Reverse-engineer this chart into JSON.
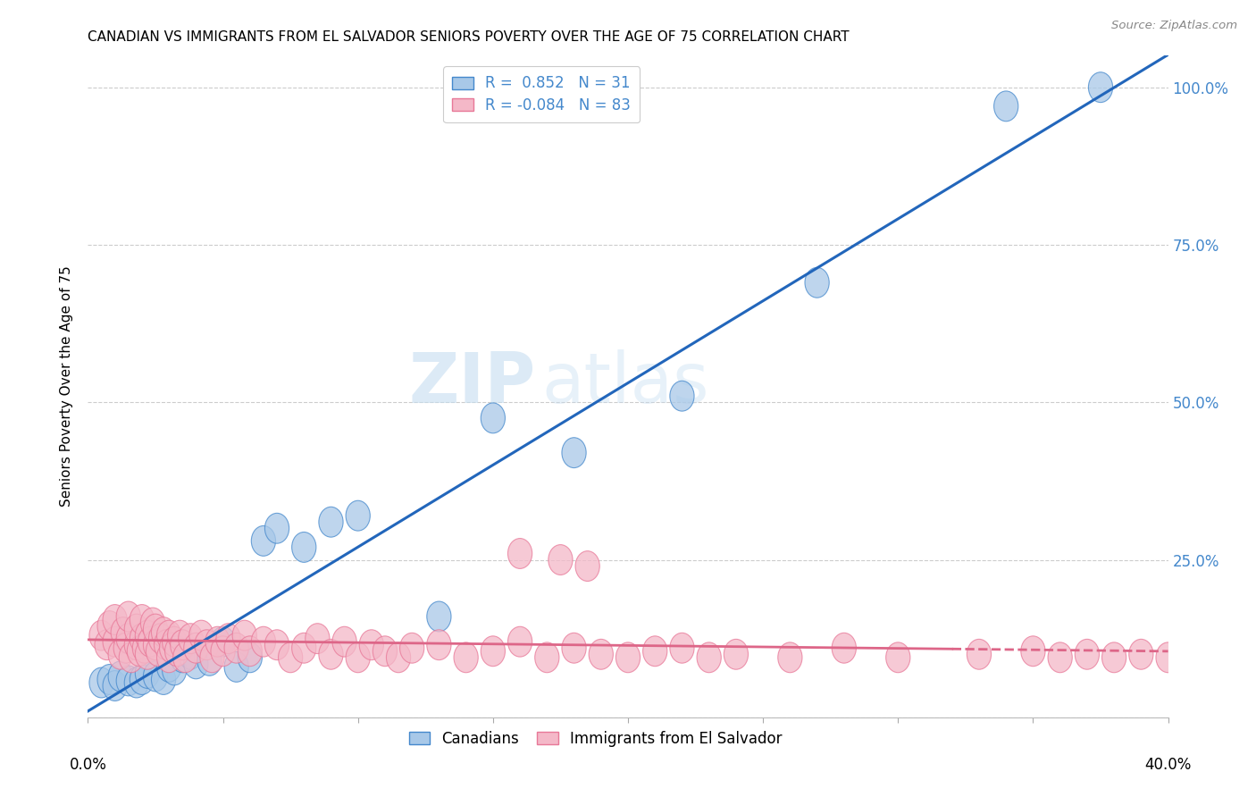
{
  "title": "CANADIAN VS IMMIGRANTS FROM EL SALVADOR SENIORS POVERTY OVER THE AGE OF 75 CORRELATION CHART",
  "source": "Source: ZipAtlas.com",
  "ylabel": "Seniors Poverty Over the Age of 75",
  "yticks": [
    0.0,
    0.25,
    0.5,
    0.75,
    1.0
  ],
  "ytick_labels": [
    "",
    "25.0%",
    "50.0%",
    "75.0%",
    "100.0%"
  ],
  "xlim": [
    0.0,
    0.4
  ],
  "ylim": [
    0.0,
    1.05
  ],
  "legend_r_labels": [
    "R =  0.852   N = 31",
    "R = -0.084   N = 83"
  ],
  "legend_labels": [
    "Canadians",
    "Immigrants from El Salvador"
  ],
  "watermark_zip": "ZIP",
  "watermark_atlas": "atlas",
  "blue_fill": "#a8c8e8",
  "pink_fill": "#f4b8c8",
  "blue_edge": "#4488cc",
  "pink_edge": "#e87898",
  "blue_line": "#2266bb",
  "pink_line": "#dd6688",
  "right_axis_color": "#4488cc",
  "canadians_x": [
    0.005,
    0.008,
    0.01,
    0.012,
    0.015,
    0.018,
    0.02,
    0.022,
    0.025,
    0.028,
    0.03,
    0.032,
    0.035,
    0.038,
    0.04,
    0.045,
    0.05,
    0.055,
    0.06,
    0.065,
    0.07,
    0.08,
    0.09,
    0.1,
    0.13,
    0.15,
    0.18,
    0.22,
    0.27,
    0.34,
    0.375
  ],
  "canadians_y": [
    0.055,
    0.06,
    0.05,
    0.065,
    0.058,
    0.055,
    0.06,
    0.07,
    0.065,
    0.06,
    0.08,
    0.075,
    0.095,
    0.1,
    0.085,
    0.09,
    0.12,
    0.08,
    0.095,
    0.28,
    0.3,
    0.27,
    0.31,
    0.32,
    0.16,
    0.475,
    0.42,
    0.51,
    0.69,
    0.97,
    1.0
  ],
  "salvador_x": [
    0.005,
    0.007,
    0.008,
    0.01,
    0.01,
    0.012,
    0.013,
    0.014,
    0.015,
    0.015,
    0.016,
    0.018,
    0.018,
    0.019,
    0.02,
    0.02,
    0.021,
    0.022,
    0.022,
    0.023,
    0.024,
    0.025,
    0.025,
    0.026,
    0.027,
    0.028,
    0.029,
    0.03,
    0.03,
    0.031,
    0.032,
    0.033,
    0.034,
    0.035,
    0.036,
    0.038,
    0.04,
    0.042,
    0.044,
    0.046,
    0.048,
    0.05,
    0.052,
    0.055,
    0.058,
    0.06,
    0.065,
    0.07,
    0.075,
    0.08,
    0.085,
    0.09,
    0.095,
    0.1,
    0.105,
    0.11,
    0.115,
    0.12,
    0.13,
    0.14,
    0.15,
    0.16,
    0.17,
    0.18,
    0.19,
    0.2,
    0.21,
    0.22,
    0.23,
    0.24,
    0.16,
    0.175,
    0.185,
    0.28,
    0.26,
    0.33,
    0.3,
    0.35,
    0.36,
    0.37,
    0.38,
    0.39,
    0.4
  ],
  "salvador_y": [
    0.13,
    0.115,
    0.145,
    0.12,
    0.155,
    0.1,
    0.135,
    0.11,
    0.125,
    0.16,
    0.095,
    0.115,
    0.14,
    0.105,
    0.125,
    0.155,
    0.11,
    0.13,
    0.1,
    0.12,
    0.15,
    0.115,
    0.14,
    0.105,
    0.125,
    0.135,
    0.115,
    0.095,
    0.13,
    0.11,
    0.12,
    0.105,
    0.13,
    0.115,
    0.095,
    0.125,
    0.11,
    0.13,
    0.115,
    0.095,
    0.12,
    0.105,
    0.125,
    0.11,
    0.13,
    0.105,
    0.12,
    0.115,
    0.095,
    0.11,
    0.125,
    0.1,
    0.12,
    0.095,
    0.115,
    0.105,
    0.095,
    0.11,
    0.115,
    0.095,
    0.105,
    0.12,
    0.095,
    0.11,
    0.1,
    0.095,
    0.105,
    0.11,
    0.095,
    0.1,
    0.26,
    0.25,
    0.24,
    0.11,
    0.095,
    0.1,
    0.095,
    0.105,
    0.095,
    0.1,
    0.095,
    0.1,
    0.095
  ]
}
